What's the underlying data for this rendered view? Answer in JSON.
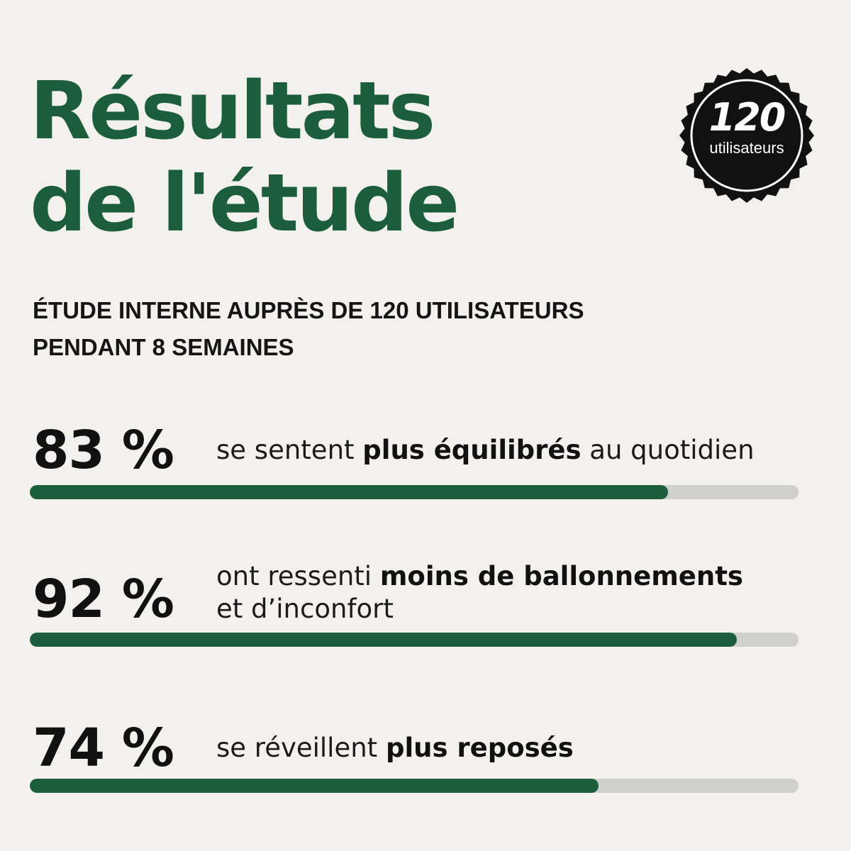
{
  "header": {
    "title_line_1": "Résultats",
    "title_line_2": "de l'étude",
    "subtitle_line_1": "ÉTUDE INTERNE AUPRÈS DE 120 UTILISATEURS",
    "subtitle_line_2": "PENDANT 8 SEMAINES"
  },
  "badge": {
    "number": "120",
    "label": "utilisateurs",
    "icon": "seal-badge-icon"
  },
  "stats": [
    {
      "percent_label": "83 %",
      "value": 0.83,
      "text_before": "se sentent ",
      "text_bold": "plus équilibrés",
      "text_after": " au quotidien"
    },
    {
      "percent_label": "92 %",
      "value": 0.92,
      "text_before": "ont ressenti ",
      "text_bold": "moins de ballonnements",
      "text_line_2": "et d’inconfort"
    },
    {
      "percent_label": "74 %",
      "value": 0.74,
      "text_before": "se réveillent ",
      "text_bold": "plus reposés"
    }
  ],
  "colors": {
    "accent_green": "#1c5e3c",
    "track_gray": "#cfcfcd",
    "background": "#f2f1ee",
    "badge_black": "#111111"
  }
}
